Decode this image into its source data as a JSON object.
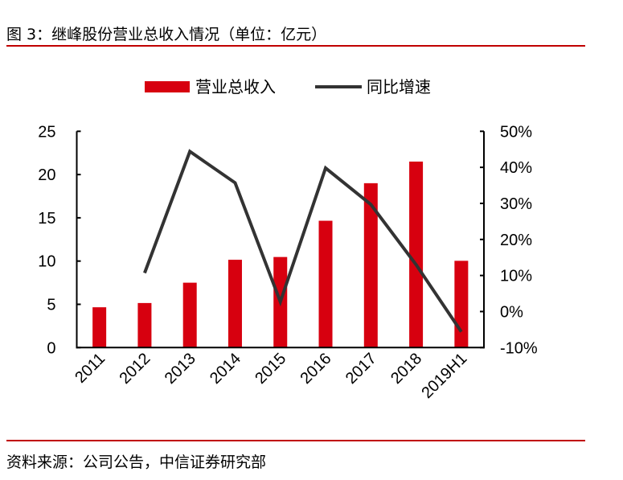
{
  "title": "图 3：继峰股份营业总收入情况（单位：亿元）",
  "source": "资料来源：公司公告，中信证券研究部",
  "colors": {
    "bar": "#d7000f",
    "line": "#333333",
    "rule": "#c00000"
  },
  "chart_data": {
    "type": "bar+line",
    "categories": [
      "2011",
      "2012",
      "2013",
      "2014",
      "2015",
      "2016",
      "2017",
      "2018",
      "2019H1"
    ],
    "series": [
      {
        "name": "营业总收入",
        "type": "bar",
        "axis": "left",
        "values": [
          4.66,
          5.15,
          7.5,
          10.15,
          10.47,
          14.66,
          19.0,
          21.5,
          10.03
        ]
      },
      {
        "name": "同比增速",
        "type": "line",
        "axis": "right",
        "values": [
          null,
          10.7,
          44.4,
          35.7,
          2.7,
          39.8,
          29.7,
          13.0,
          -5.6
        ]
      }
    ],
    "left_axis": {
      "range": [
        0,
        25
      ],
      "ticks": [
        "0",
        "5",
        "10",
        "15",
        "20",
        "25"
      ]
    },
    "right_axis": {
      "range": [
        -10,
        50
      ],
      "ticks": [
        "-10%",
        "0%",
        "10%",
        "20%",
        "30%",
        "40%",
        "50%"
      ]
    },
    "legend": "top"
  }
}
